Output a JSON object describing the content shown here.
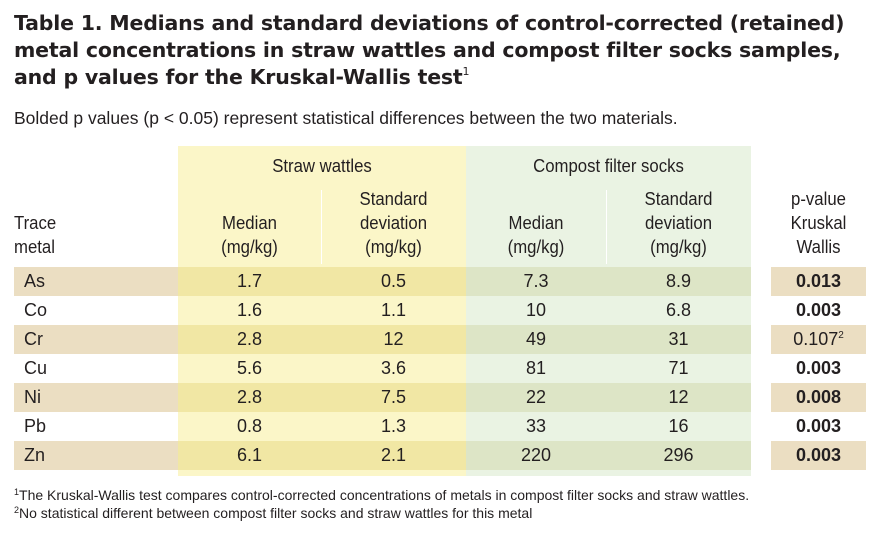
{
  "title": {
    "text": "Table 1. Medians and standard deviations of control-corrected (retained) metal concentrations in straw wattles and compost filter socks samples, and p values for the Kruskal-Wallis test",
    "footnote_mark": "1"
  },
  "subtitle": "Bolded p values (p < 0.05) represent statistical differences between the two materials.",
  "header": {
    "straw_group": "Straw wattles",
    "compost_group": "Compost filter socks",
    "trace_metal": [
      "Trace",
      "metal"
    ],
    "median": [
      "Median",
      "(mg/kg)"
    ],
    "std_dev": [
      "Standard",
      "deviation",
      "(mg/kg)"
    ],
    "pvalue": [
      "p-value",
      "Kruskal",
      "Wallis"
    ]
  },
  "rows": [
    {
      "metal": "As",
      "sw_median": "1.7",
      "sw_sd": "0.5",
      "cf_median": "7.3",
      "cf_sd": "8.9",
      "p": "0.013",
      "p_bold": true,
      "p_note": ""
    },
    {
      "metal": "Co",
      "sw_median": "1.6",
      "sw_sd": "1.1",
      "cf_median": "10",
      "cf_sd": "6.8",
      "p": "0.003",
      "p_bold": true,
      "p_note": ""
    },
    {
      "metal": "Cr",
      "sw_median": "2.8",
      "sw_sd": "12",
      "cf_median": "49",
      "cf_sd": "31",
      "p": "0.107",
      "p_bold": false,
      "p_note": "2"
    },
    {
      "metal": "Cu",
      "sw_median": "5.6",
      "sw_sd": "3.6",
      "cf_median": "81",
      "cf_sd": "71",
      "p": "0.003",
      "p_bold": true,
      "p_note": ""
    },
    {
      "metal": "Ni",
      "sw_median": "2.8",
      "sw_sd": "7.5",
      "cf_median": "22",
      "cf_sd": "12",
      "p": "0.008",
      "p_bold": true,
      "p_note": ""
    },
    {
      "metal": "Pb",
      "sw_median": "0.8",
      "sw_sd": "1.3",
      "cf_median": "33",
      "cf_sd": "16",
      "p": "0.003",
      "p_bold": true,
      "p_note": ""
    },
    {
      "metal": "Zn",
      "sw_median": "6.1",
      "sw_sd": "2.1",
      "cf_median": "220",
      "cf_sd": "296",
      "p": "0.003",
      "p_bold": true,
      "p_note": ""
    }
  ],
  "footnotes": [
    {
      "mark": "1",
      "text": "The Kruskal-Wallis test compares control-corrected concentrations of metals in compost filter socks and straw wattles."
    },
    {
      "mark": "2",
      "text": "No statistical different between compost filter socks and straw wattles for this metal"
    }
  ],
  "colors": {
    "straw_header_bg": "#fbf6c8",
    "compost_header_bg": "#eaf3e3",
    "shade_metal": "#ebdec2",
    "shade_straw": "#f1e7a4",
    "shade_compost": "#dde5c6"
  }
}
